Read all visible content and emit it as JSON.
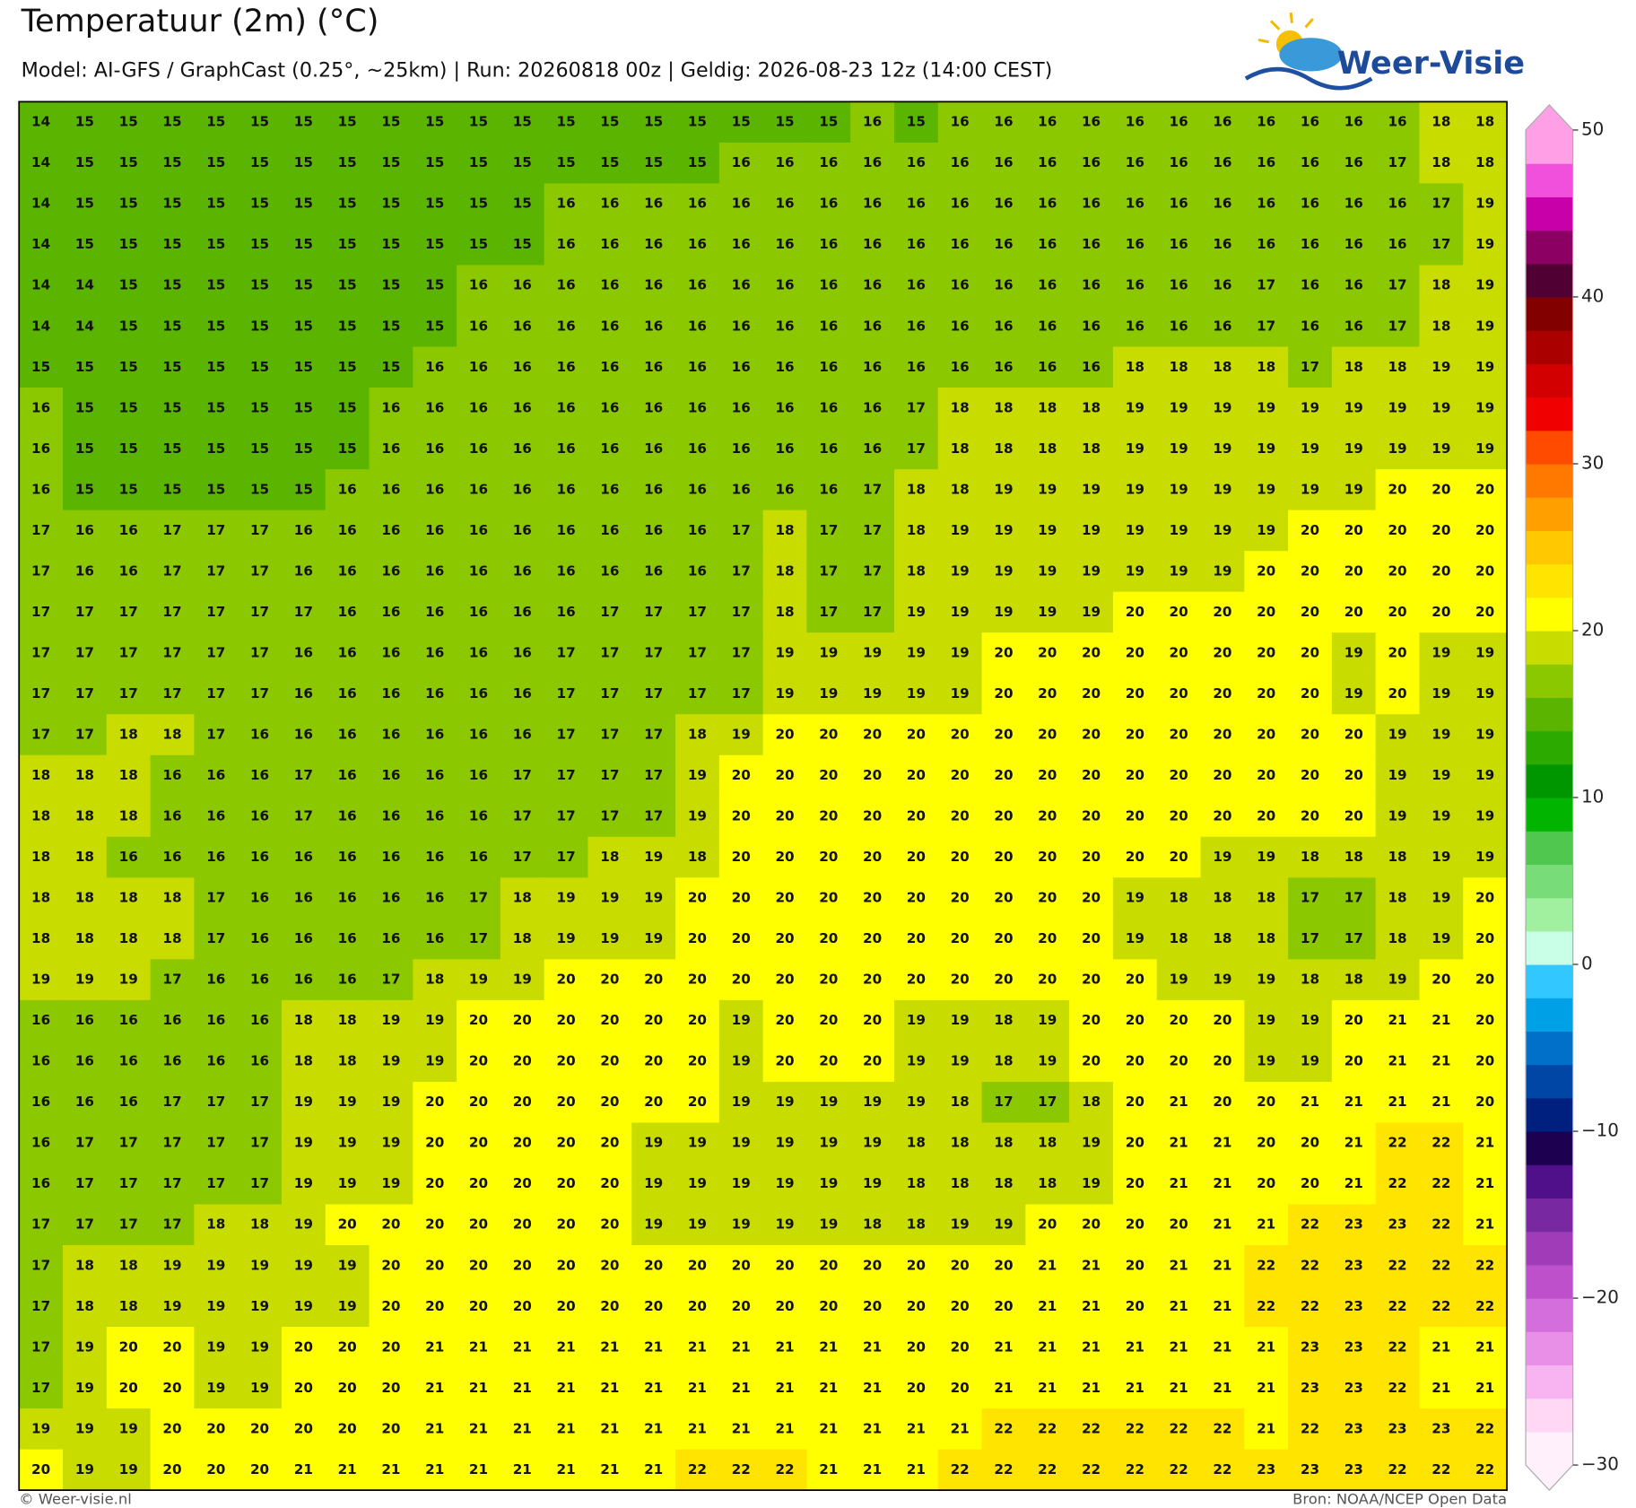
{
  "header": {
    "title": "Temperatuur (2m) (°C)",
    "subtitle": "Model: AI-GFS / GraphCast (0.25°, ~25km)  |  Run: 20260818 00z  |  Geldig: 2026-08-23 12z (14:00 CEST)",
    "logo": "Weer-Visie"
  },
  "footer": {
    "left": "© Weer-visie.nl",
    "right": "Bron: NOAA/NCEP Open Data"
  },
  "colorbar": {
    "lim": [
      -30,
      50
    ],
    "ticks": [
      50,
      40,
      30,
      20,
      10,
      0,
      {
        "value": -10,
        "label": "−10"
      },
      {
        "value": -20,
        "label": "−20"
      },
      {
        "value": -30,
        "label": "−30"
      }
    ],
    "colors": [
      "#fff0fc",
      "#ffd8f6",
      "#f8b4f0",
      "#e890e8",
      "#d46edc",
      "#be50cc",
      "#a03cb8",
      "#7828a0",
      "#50108a",
      "#1e0050",
      "#002080",
      "#0046a5",
      "#0070c8",
      "#00a0e6",
      "#32c8ff",
      "#c8ffe6",
      "#a0f0a0",
      "#78dc78",
      "#50c850",
      "#00b400",
      "#009600",
      "#2daa00",
      "#5ab400",
      "#8cc800",
      "#c8dc00",
      "#ffff00",
      "#ffe400",
      "#ffc800",
      "#ffa000",
      "#ff7800",
      "#ff4b00",
      "#f00000",
      "#d20000",
      "#aa0000",
      "#820000",
      "#500032",
      "#8c0064",
      "#c800aa",
      "#f050dc",
      "#ffa0e6"
    ]
  },
  "grid": {
    "rows": [
      [
        14,
        15,
        15,
        15,
        15,
        15,
        15,
        15,
        15,
        15,
        15,
        15,
        15,
        15,
        15,
        15,
        15,
        15,
        15,
        16,
        15,
        16,
        16,
        16,
        16,
        16,
        16,
        16,
        16,
        16,
        16,
        16,
        18,
        18
      ],
      [
        14,
        15,
        15,
        15,
        15,
        15,
        15,
        15,
        15,
        15,
        15,
        15,
        15,
        15,
        15,
        15,
        16,
        16,
        16,
        16,
        16,
        16,
        16,
        16,
        16,
        16,
        16,
        16,
        16,
        16,
        16,
        17,
        18,
        18
      ],
      [
        14,
        15,
        15,
        15,
        15,
        15,
        15,
        15,
        15,
        15,
        15,
        15,
        16,
        16,
        16,
        16,
        16,
        16,
        16,
        16,
        16,
        16,
        16,
        16,
        16,
        16,
        16,
        16,
        16,
        16,
        16,
        16,
        17,
        19
      ],
      [
        14,
        15,
        15,
        15,
        15,
        15,
        15,
        15,
        15,
        15,
        15,
        15,
        16,
        16,
        16,
        16,
        16,
        16,
        16,
        16,
        16,
        16,
        16,
        16,
        16,
        16,
        16,
        16,
        16,
        16,
        16,
        16,
        17,
        19
      ],
      [
        14,
        14,
        15,
        15,
        15,
        15,
        15,
        15,
        15,
        15,
        16,
        16,
        16,
        16,
        16,
        16,
        16,
        16,
        16,
        16,
        16,
        16,
        16,
        16,
        16,
        16,
        16,
        16,
        17,
        16,
        16,
        17,
        18,
        19
      ],
      [
        14,
        14,
        15,
        15,
        15,
        15,
        15,
        15,
        15,
        15,
        16,
        16,
        16,
        16,
        16,
        16,
        16,
        16,
        16,
        16,
        16,
        16,
        16,
        16,
        16,
        16,
        16,
        16,
        17,
        16,
        16,
        17,
        18,
        19
      ],
      [
        15,
        15,
        15,
        15,
        15,
        15,
        15,
        15,
        15,
        16,
        16,
        16,
        16,
        16,
        16,
        16,
        16,
        16,
        16,
        16,
        16,
        16,
        16,
        16,
        16,
        18,
        18,
        18,
        18,
        17,
        18,
        18,
        19,
        19
      ],
      [
        16,
        15,
        15,
        15,
        15,
        15,
        15,
        15,
        16,
        16,
        16,
        16,
        16,
        16,
        16,
        16,
        16,
        16,
        16,
        16,
        17,
        18,
        18,
        18,
        18,
        19,
        19,
        19,
        19,
        19,
        19,
        19,
        19,
        19
      ],
      [
        16,
        15,
        15,
        15,
        15,
        15,
        15,
        15,
        16,
        16,
        16,
        16,
        16,
        16,
        16,
        16,
        16,
        16,
        16,
        16,
        17,
        18,
        18,
        18,
        18,
        19,
        19,
        19,
        19,
        19,
        19,
        19,
        19,
        19
      ],
      [
        16,
        15,
        15,
        15,
        15,
        15,
        15,
        16,
        16,
        16,
        16,
        16,
        16,
        16,
        16,
        16,
        16,
        16,
        16,
        17,
        18,
        18,
        19,
        19,
        19,
        19,
        19,
        19,
        19,
        19,
        19,
        20,
        20,
        20
      ],
      [
        17,
        16,
        16,
        17,
        17,
        17,
        16,
        16,
        16,
        16,
        16,
        16,
        16,
        16,
        16,
        16,
        17,
        18,
        17,
        17,
        18,
        19,
        19,
        19,
        19,
        19,
        19,
        19,
        19,
        20,
        20,
        20,
        20,
        20
      ],
      [
        17,
        16,
        16,
        17,
        17,
        17,
        16,
        16,
        16,
        16,
        16,
        16,
        16,
        16,
        16,
        16,
        17,
        18,
        17,
        17,
        18,
        19,
        19,
        19,
        19,
        19,
        19,
        19,
        20,
        20,
        20,
        20,
        20,
        20
      ],
      [
        17,
        17,
        17,
        17,
        17,
        17,
        17,
        16,
        16,
        16,
        16,
        16,
        16,
        17,
        17,
        17,
        17,
        18,
        17,
        17,
        19,
        19,
        19,
        19,
        19,
        20,
        20,
        20,
        20,
        20,
        20,
        20,
        20,
        20
      ],
      [
        17,
        17,
        17,
        17,
        17,
        17,
        16,
        16,
        16,
        16,
        16,
        16,
        17,
        17,
        17,
        17,
        17,
        19,
        19,
        19,
        19,
        19,
        20,
        20,
        20,
        20,
        20,
        20,
        20,
        20,
        19,
        20,
        19,
        19
      ],
      [
        17,
        17,
        17,
        17,
        17,
        17,
        16,
        16,
        16,
        16,
        16,
        16,
        17,
        17,
        17,
        17,
        17,
        19,
        19,
        19,
        19,
        19,
        20,
        20,
        20,
        20,
        20,
        20,
        20,
        20,
        19,
        20,
        19,
        19
      ],
      [
        17,
        17,
        18,
        18,
        17,
        16,
        16,
        16,
        16,
        16,
        16,
        16,
        17,
        17,
        17,
        18,
        19,
        20,
        20,
        20,
        20,
        20,
        20,
        20,
        20,
        20,
        20,
        20,
        20,
        20,
        20,
        19,
        19,
        19
      ],
      [
        18,
        18,
        18,
        16,
        16,
        16,
        17,
        16,
        16,
        16,
        16,
        17,
        17,
        17,
        17,
        19,
        20,
        20,
        20,
        20,
        20,
        20,
        20,
        20,
        20,
        20,
        20,
        20,
        20,
        20,
        20,
        19,
        19,
        19
      ],
      [
        18,
        18,
        18,
        16,
        16,
        16,
        17,
        16,
        16,
        16,
        16,
        17,
        17,
        17,
        17,
        19,
        20,
        20,
        20,
        20,
        20,
        20,
        20,
        20,
        20,
        20,
        20,
        20,
        20,
        20,
        20,
        19,
        19,
        19
      ],
      [
        18,
        18,
        16,
        16,
        16,
        16,
        16,
        16,
        16,
        16,
        16,
        17,
        17,
        18,
        19,
        18,
        20,
        20,
        20,
        20,
        20,
        20,
        20,
        20,
        20,
        20,
        20,
        19,
        19,
        18,
        18,
        18,
        19,
        19
      ],
      [
        18,
        18,
        18,
        18,
        17,
        16,
        16,
        16,
        16,
        16,
        17,
        18,
        19,
        19,
        19,
        20,
        20,
        20,
        20,
        20,
        20,
        20,
        20,
        20,
        20,
        19,
        18,
        18,
        18,
        17,
        17,
        18,
        19,
        20
      ],
      [
        18,
        18,
        18,
        18,
        17,
        16,
        16,
        16,
        16,
        16,
        17,
        18,
        19,
        19,
        19,
        20,
        20,
        20,
        20,
        20,
        20,
        20,
        20,
        20,
        20,
        19,
        18,
        18,
        18,
        17,
        17,
        18,
        19,
        20
      ],
      [
        19,
        19,
        19,
        17,
        16,
        16,
        16,
        16,
        17,
        18,
        19,
        19,
        20,
        20,
        20,
        20,
        20,
        20,
        20,
        20,
        20,
        20,
        20,
        20,
        20,
        20,
        19,
        19,
        19,
        18,
        18,
        19,
        20,
        20
      ],
      [
        16,
        16,
        16,
        16,
        16,
        16,
        18,
        18,
        19,
        19,
        20,
        20,
        20,
        20,
        20,
        20,
        19,
        20,
        20,
        20,
        19,
        19,
        18,
        19,
        20,
        20,
        20,
        20,
        19,
        19,
        20,
        21,
        21,
        20
      ],
      [
        16,
        16,
        16,
        16,
        16,
        16,
        18,
        18,
        19,
        19,
        20,
        20,
        20,
        20,
        20,
        20,
        19,
        20,
        20,
        20,
        19,
        19,
        18,
        19,
        20,
        20,
        20,
        20,
        19,
        19,
        20,
        21,
        21,
        20
      ],
      [
        16,
        16,
        16,
        17,
        17,
        17,
        19,
        19,
        19,
        20,
        20,
        20,
        20,
        20,
        20,
        20,
        19,
        19,
        19,
        19,
        19,
        18,
        17,
        17,
        18,
        20,
        21,
        20,
        20,
        21,
        21,
        21,
        21,
        20
      ],
      [
        16,
        17,
        17,
        17,
        17,
        17,
        19,
        19,
        19,
        20,
        20,
        20,
        20,
        20,
        19,
        19,
        19,
        19,
        19,
        19,
        18,
        18,
        18,
        18,
        19,
        20,
        21,
        21,
        20,
        20,
        21,
        22,
        22,
        21
      ],
      [
        16,
        17,
        17,
        17,
        17,
        17,
        19,
        19,
        19,
        20,
        20,
        20,
        20,
        20,
        19,
        19,
        19,
        19,
        19,
        19,
        18,
        18,
        18,
        18,
        19,
        20,
        21,
        21,
        20,
        20,
        21,
        22,
        22,
        21
      ],
      [
        17,
        17,
        17,
        17,
        18,
        18,
        19,
        20,
        20,
        20,
        20,
        20,
        20,
        20,
        19,
        19,
        19,
        19,
        19,
        18,
        18,
        19,
        19,
        20,
        20,
        20,
        20,
        21,
        21,
        22,
        23,
        23,
        22,
        21
      ],
      [
        17,
        18,
        18,
        19,
        19,
        19,
        19,
        19,
        20,
        20,
        20,
        20,
        20,
        20,
        20,
        20,
        20,
        20,
        20,
        20,
        20,
        20,
        20,
        21,
        21,
        20,
        21,
        21,
        22,
        22,
        23,
        22,
        22,
        22
      ],
      [
        17,
        18,
        18,
        19,
        19,
        19,
        19,
        19,
        20,
        20,
        20,
        20,
        20,
        20,
        20,
        20,
        20,
        20,
        20,
        20,
        20,
        20,
        20,
        21,
        21,
        20,
        21,
        21,
        22,
        22,
        23,
        22,
        22,
        22
      ],
      [
        17,
        19,
        20,
        20,
        19,
        19,
        20,
        20,
        20,
        21,
        21,
        21,
        21,
        21,
        21,
        21,
        21,
        21,
        21,
        21,
        20,
        20,
        21,
        21,
        21,
        21,
        21,
        21,
        21,
        23,
        23,
        22,
        21,
        21
      ],
      [
        17,
        19,
        20,
        20,
        19,
        19,
        20,
        20,
        20,
        21,
        21,
        21,
        21,
        21,
        21,
        21,
        21,
        21,
        21,
        21,
        20,
        20,
        21,
        21,
        21,
        21,
        21,
        21,
        21,
        23,
        23,
        22,
        21,
        21
      ],
      [
        19,
        19,
        19,
        20,
        20,
        20,
        20,
        20,
        20,
        21,
        21,
        21,
        21,
        21,
        21,
        21,
        21,
        21,
        21,
        21,
        21,
        21,
        22,
        22,
        22,
        22,
        22,
        22,
        21,
        22,
        23,
        23,
        23,
        22
      ],
      [
        20,
        19,
        19,
        20,
        20,
        20,
        21,
        21,
        21,
        21,
        21,
        21,
        21,
        21,
        21,
        22,
        22,
        22,
        21,
        21,
        21,
        22,
        22,
        22,
        22,
        22,
        22,
        22,
        23,
        23,
        23,
        22,
        22,
        22
      ]
    ]
  }
}
